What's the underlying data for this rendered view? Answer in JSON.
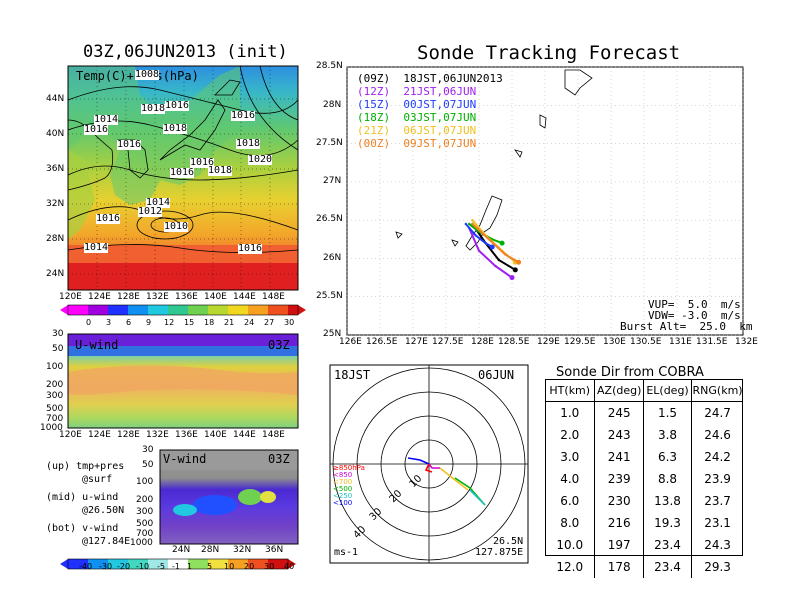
{
  "left_map": {
    "title": "03Z,06JUN2013 (init)",
    "inner_label": "Temp(C)+Pres(hPa)",
    "ylabels": [
      "44N",
      "40N",
      "36N",
      "32N",
      "28N",
      "24N"
    ],
    "xlabels": [
      "120E",
      "124E",
      "128E",
      "132E",
      "136E",
      "140E",
      "144E",
      "148E"
    ],
    "isobars": [
      "1008",
      "1016",
      "1018",
      "1014",
      "1016",
      "1016",
      "1018",
      "1016",
      "1018",
      "1016",
      "1016",
      "1018",
      "1020",
      "1014",
      "1012",
      "1016",
      "1010",
      "1014",
      "1016"
    ],
    "colorbar_ticks": [
      "0",
      "3",
      "6",
      "9",
      "12",
      "15",
      "18",
      "21",
      "24",
      "27",
      "30"
    ]
  },
  "u_panel": {
    "label": "U-wind",
    "time": "03Z",
    "ylabels": [
      "30",
      "50",
      "100",
      "200",
      "300",
      "500",
      "700",
      "1000"
    ],
    "xlabels": [
      "120E",
      "124E",
      "128E",
      "132E",
      "136E",
      "140E",
      "144E",
      "148E"
    ]
  },
  "v_panel": {
    "label": "V-wind",
    "time": "03Z",
    "ylabels": [
      "30",
      "50",
      "100",
      "200",
      "300",
      "500",
      "700",
      "1000"
    ],
    "xlabels": [
      "24N",
      "28N",
      "32N",
      "36N"
    ],
    "colorbar_ticks": [
      "-40",
      "-30",
      "-20",
      "-10",
      "-5",
      "-1",
      "1",
      "5",
      "10",
      "20",
      "30",
      "40"
    ]
  },
  "legend_notes": {
    "line1": "(up) tmp+pres",
    "line2": "@surf",
    "line3": "(mid) u-wind",
    "line4": "@26.50N",
    "line5": "(bot) v-wind",
    "line6": "@127.84E"
  },
  "tracking": {
    "title": "Sonde Tracking Forecast",
    "ylabels": [
      "28.5N",
      "28N",
      "27.5N",
      "27N",
      "26.5N",
      "26N",
      "25.5N",
      "25N"
    ],
    "xlabels": [
      "126E",
      "126.5E",
      "127E",
      "127.5E",
      "128E",
      "128.5E",
      "129E",
      "129.5E",
      "130E",
      "130.5E",
      "131E",
      "131.5E",
      "132E"
    ],
    "runs": [
      {
        "label": "(09Z)  18JST,06JUN2013",
        "color": "#000000"
      },
      {
        "label": "(12Z)  21JST,06JUN",
        "color": "#a020f0"
      },
      {
        "label": "(15Z)  00JST,07JUN",
        "color": "#1e3cff"
      },
      {
        "label": "(18Z)  03JST,07JUN",
        "color": "#00b000"
      },
      {
        "label": "(21Z)  06JST,07JUN",
        "color": "#f0c020"
      },
      {
        "label": "(00Z)  09JST,07JUN",
        "color": "#f08020"
      }
    ],
    "vup": "VUP=  5.0  m/s",
    "vdw": "VDW= -3.0  m/s",
    "burst": "Burst Alt=  25.0  km"
  },
  "polar": {
    "time": "18JST",
    "date": "06JUN",
    "ring_labels": [
      "10",
      "20",
      "30",
      "40"
    ],
    "units": "ms-1",
    "lat": "26.5N",
    "lon": "127.875E",
    "level_legend": [
      "≥850hPa",
      "<850",
      "<700",
      "<500",
      "<250",
      "<100"
    ]
  },
  "sonde_dir": {
    "title": "Sonde Dir from COBRA",
    "headers": [
      "HT(km)",
      "AZ(deg)",
      "EL(deg)",
      "RNG(km)"
    ],
    "rows": [
      [
        "1.0",
        "245",
        "1.5",
        "24.7"
      ],
      [
        "2.0",
        "243",
        "3.8",
        "24.6"
      ],
      [
        "3.0",
        "241",
        "6.3",
        "24.2"
      ],
      [
        "4.0",
        "239",
        "8.8",
        "23.9"
      ],
      [
        "6.0",
        "230",
        "13.8",
        "23.7"
      ],
      [
        "8.0",
        "216",
        "19.3",
        "23.1"
      ],
      [
        "10.0",
        "197",
        "23.4",
        "24.3"
      ],
      [
        "12.0",
        "178",
        "23.4",
        "29.3"
      ]
    ]
  },
  "chart_data": [
    {
      "type": "line",
      "title": "Sonde Tracking Forecast",
      "xlim": [
        126,
        132
      ],
      "ylim": [
        25,
        28.5
      ],
      "series": [
        {
          "name": "(09Z)  18JST,06JUN2013",
          "x": [
            127.9,
            128.1,
            128.3,
            128.55
          ],
          "y": [
            26.45,
            26.2,
            25.98,
            25.85
          ]
        },
        {
          "name": "(12Z)  21JST,06JUN",
          "x": [
            127.85,
            128.0,
            128.25,
            128.5
          ],
          "y": [
            26.4,
            26.1,
            25.9,
            25.75
          ]
        },
        {
          "name": "(15Z)  00JST,07JUN",
          "x": [
            127.8,
            127.95,
            128.1,
            128.2
          ],
          "y": [
            26.45,
            26.3,
            26.2,
            26.15
          ]
        },
        {
          "name": "(18Z)  03JST,07JUN",
          "x": [
            127.85,
            128.0,
            128.2,
            128.35
          ],
          "y": [
            26.45,
            26.35,
            26.25,
            26.2
          ]
        },
        {
          "name": "(21Z)  06JST,07JUN",
          "x": [
            127.9,
            128.1,
            128.35,
            128.55
          ],
          "y": [
            26.5,
            26.3,
            26.1,
            25.95
          ]
        },
        {
          "name": "(00Z)  09JST,07JUN",
          "x": [
            127.9,
            128.15,
            128.4,
            128.6
          ],
          "y": [
            26.45,
            26.25,
            26.05,
            25.95
          ]
        }
      ]
    },
    {
      "type": "table",
      "title": "Sonde Dir from COBRA",
      "columns": [
        "HT(km)",
        "AZ(deg)",
        "EL(deg)",
        "RNG(km)"
      ]
    }
  ]
}
